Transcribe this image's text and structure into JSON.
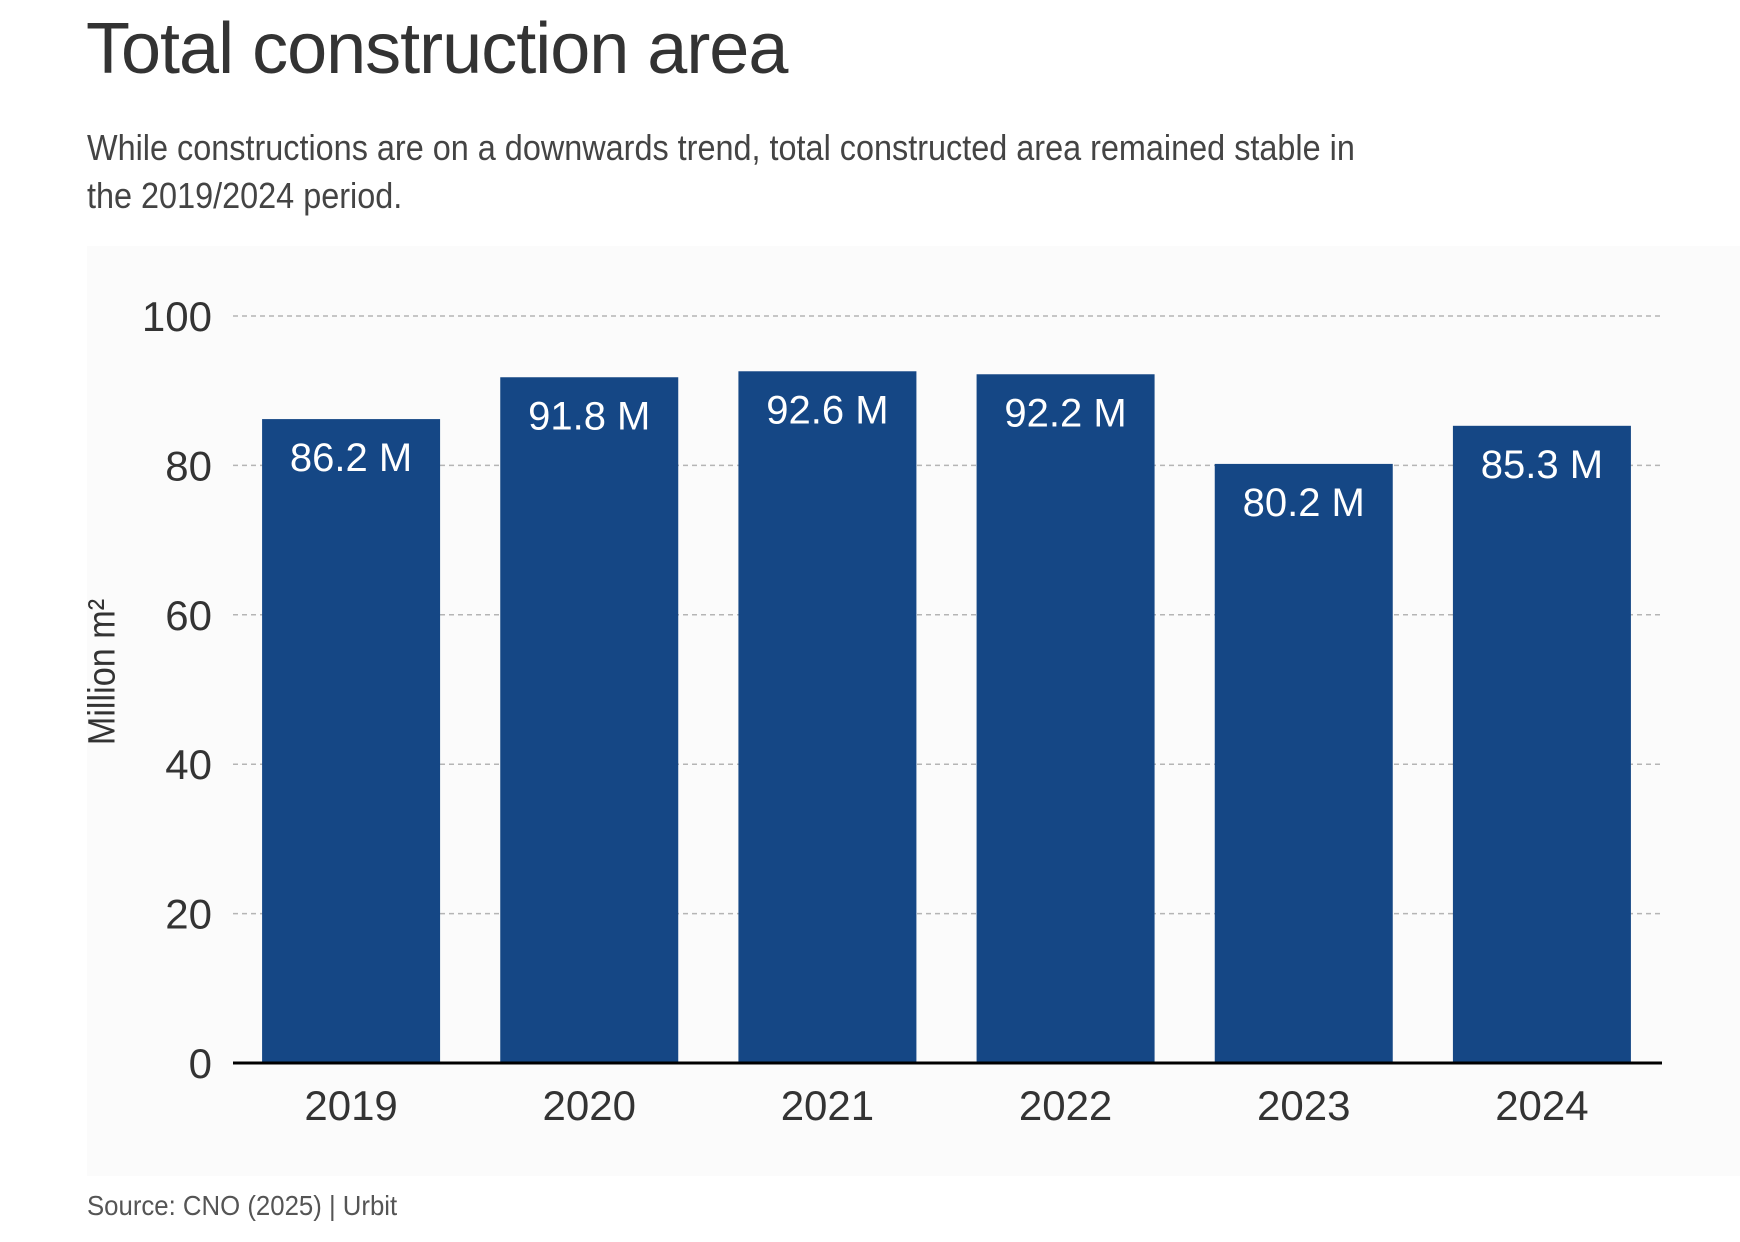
{
  "title": "Total construction area",
  "subtitle": "While constructions are on a downwards trend, total constructed area remained stable in the 2019/2024 period.",
  "source": "Source: CNO (2025) | Urbit",
  "colors": {
    "bar": "#154785",
    "bar_label": "#ffffff",
    "grid": "#b5b5b5",
    "axis": "#000000",
    "text": "#333333"
  },
  "chart_data": {
    "type": "bar",
    "title": "Total construction area",
    "xlabel": "",
    "ylabel": "Million m²",
    "categories": [
      "2019",
      "2020",
      "2021",
      "2022",
      "2023",
      "2024"
    ],
    "values": [
      86.2,
      91.8,
      92.6,
      92.2,
      80.2,
      85.3
    ],
    "value_labels": [
      "86.2 M",
      "91.8 M",
      "92.6 M",
      "92.2 M",
      "80.2 M",
      "85.3 M"
    ],
    "ylim": [
      0,
      100
    ],
    "yticks": [
      0,
      20,
      40,
      60,
      80,
      100
    ],
    "grid": true,
    "legend": "none"
  }
}
